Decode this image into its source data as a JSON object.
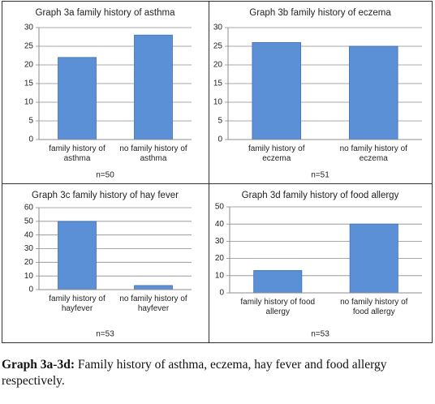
{
  "chart_data": [
    {
      "type": "bar",
      "title": "Graph 3a family history of asthma",
      "categories": [
        "family history of asthma",
        "no family history of asthma"
      ],
      "values": [
        22,
        28
      ],
      "color": "#5b8fd6",
      "ylim": [
        0,
        30
      ],
      "yticks": [
        0,
        5,
        10,
        15,
        20,
        25,
        30
      ],
      "grid": true,
      "note": "n=50"
    },
    {
      "type": "bar",
      "title": "Graph 3b family history of eczema",
      "categories": [
        "family history of eczema",
        "no family history of eczema"
      ],
      "values": [
        26,
        25
      ],
      "color": "#5b8fd6",
      "ylim": [
        0,
        30
      ],
      "yticks": [
        0,
        5,
        10,
        15,
        20,
        25,
        30
      ],
      "grid": true,
      "note": "n=51"
    },
    {
      "type": "bar",
      "title": "Graph 3c family history of hay fever",
      "categories": [
        "family history of hayfever",
        "no family history of hayfever"
      ],
      "values": [
        50,
        3
      ],
      "color": "#5b8fd6",
      "ylim": [
        0,
        60
      ],
      "yticks": [
        0,
        10,
        20,
        30,
        40,
        50,
        60
      ],
      "grid": true,
      "note": "n=53"
    },
    {
      "type": "bar",
      "title": "Graph 3d family history of food allergy",
      "categories": [
        "family history of food allergy",
        "no family history of food allergy"
      ],
      "values": [
        13,
        40
      ],
      "color": "#5b8fd6",
      "ylim": [
        0,
        50
      ],
      "yticks": [
        0,
        10,
        20,
        30,
        40,
        50
      ],
      "grid": true,
      "note": "n=53"
    }
  ],
  "caption": {
    "label": "Graph 3a-3d:",
    "text": "Family history of asthma, eczema, hay fever and food allergy respectively."
  }
}
